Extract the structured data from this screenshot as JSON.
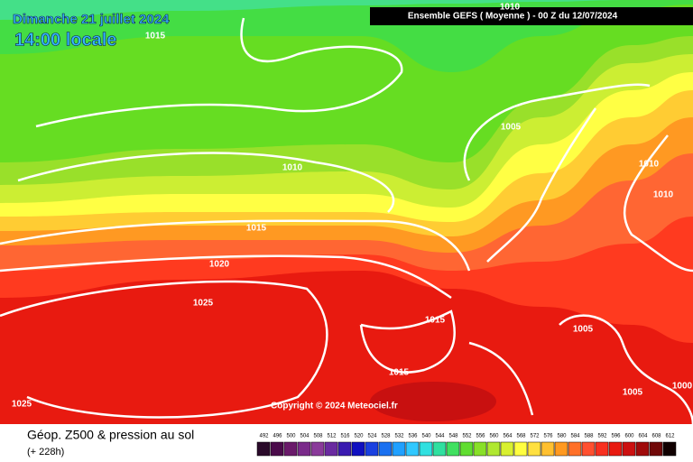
{
  "header": {
    "date": "Dimanche 21 juillet 2024",
    "time": "14:00 locale",
    "run": "Ensemble GEFS  ( Moyenne )  -  00 Z du 12/07/2024"
  },
  "isobar_labels": [
    "1015",
    "1010",
    "1005",
    "1010",
    "1015",
    "1020",
    "1025",
    "1015",
    "1005",
    "1015",
    "1025",
    "1005",
    "1000",
    "1010",
    "1010"
  ],
  "copyright": "Copyright © 2024 Meteociel.fr",
  "footer": {
    "title": "Géop. Z500 & pression au sol",
    "subtitle": "(+ 228h)"
  },
  "legend": [
    {
      "value": "492",
      "color": "#2a0a2a"
    },
    {
      "value": "496",
      "color": "#4a0a4a"
    },
    {
      "value": "500",
      "color": "#6a1a6a"
    },
    {
      "value": "504",
      "color": "#7a2a8a"
    },
    {
      "value": "508",
      "color": "#8a3a9a"
    },
    {
      "value": "512",
      "color": "#6a2aa0"
    },
    {
      "value": "516",
      "color": "#3a1ab0"
    },
    {
      "value": "520",
      "color": "#1010c0"
    },
    {
      "value": "524",
      "color": "#1a40e0"
    },
    {
      "value": "528",
      "color": "#1a70f0"
    },
    {
      "value": "532",
      "color": "#20a0ff"
    },
    {
      "value": "536",
      "color": "#30c8ff"
    },
    {
      "value": "540",
      "color": "#30e0e0"
    },
    {
      "value": "544",
      "color": "#30e0a0"
    },
    {
      "value": "548",
      "color": "#40e060"
    },
    {
      "value": "552",
      "color": "#60dd30"
    },
    {
      "value": "556",
      "color": "#88e028"
    },
    {
      "value": "560",
      "color": "#b0e830"
    },
    {
      "value": "564",
      "color": "#d8f030"
    },
    {
      "value": "568",
      "color": "#ffff40"
    },
    {
      "value": "572",
      "color": "#ffe040"
    },
    {
      "value": "576",
      "color": "#ffc030"
    },
    {
      "value": "580",
      "color": "#ff9920"
    },
    {
      "value": "584",
      "color": "#ff7028"
    },
    {
      "value": "588",
      "color": "#ff5030"
    },
    {
      "value": "592",
      "color": "#f83020"
    },
    {
      "value": "596",
      "color": "#e81a10"
    },
    {
      "value": "600",
      "color": "#cc1010"
    },
    {
      "value": "604",
      "color": "#a00a0a"
    },
    {
      "value": "608",
      "color": "#700808"
    },
    {
      "value": "612",
      "color": "#100000"
    }
  ]
}
